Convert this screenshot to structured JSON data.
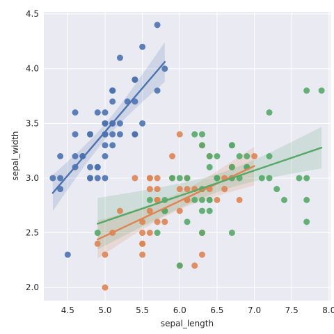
{
  "chart_data": {
    "type": "scatter",
    "title": "",
    "xlabel": "sepal_length",
    "ylabel": "sepal_width",
    "xlim": [
      4.18,
      8.02
    ],
    "ylim": [
      1.88,
      4.52
    ],
    "xticks": [
      "4.5",
      "5.0",
      "5.5",
      "6.0",
      "6.5",
      "7.0",
      "7.5",
      "8.0"
    ],
    "yticks": [
      "2.0",
      "2.5",
      "3.0",
      "3.5",
      "4.0",
      "4.5"
    ],
    "grid": true,
    "background": "#eaeaf2",
    "series": [
      {
        "color": "#4c72b0",
        "points": [
          [
            5.1,
            3.5
          ],
          [
            4.9,
            3.0
          ],
          [
            4.7,
            3.2
          ],
          [
            4.6,
            3.1
          ],
          [
            5.0,
            3.6
          ],
          [
            5.4,
            3.9
          ],
          [
            4.6,
            3.4
          ],
          [
            5.0,
            3.4
          ],
          [
            4.4,
            2.9
          ],
          [
            4.9,
            3.1
          ],
          [
            5.4,
            3.7
          ],
          [
            4.8,
            3.4
          ],
          [
            4.8,
            3.0
          ],
          [
            4.3,
            3.0
          ],
          [
            5.8,
            4.0
          ],
          [
            5.7,
            4.4
          ],
          [
            5.4,
            3.9
          ],
          [
            5.1,
            3.5
          ],
          [
            5.7,
            3.8
          ],
          [
            5.1,
            3.8
          ],
          [
            5.4,
            3.4
          ],
          [
            5.1,
            3.7
          ],
          [
            4.6,
            3.6
          ],
          [
            5.1,
            3.3
          ],
          [
            4.8,
            3.4
          ],
          [
            5.0,
            3.0
          ],
          [
            5.0,
            3.4
          ],
          [
            5.2,
            3.5
          ],
          [
            5.2,
            3.4
          ],
          [
            4.7,
            3.2
          ],
          [
            4.8,
            3.1
          ],
          [
            5.4,
            3.4
          ],
          [
            5.2,
            4.1
          ],
          [
            5.5,
            4.2
          ],
          [
            4.9,
            3.1
          ],
          [
            5.0,
            3.2
          ],
          [
            5.5,
            3.5
          ],
          [
            4.9,
            3.6
          ],
          [
            4.4,
            3.0
          ],
          [
            5.1,
            3.4
          ],
          [
            5.0,
            3.5
          ],
          [
            4.5,
            2.3
          ],
          [
            4.4,
            3.2
          ],
          [
            5.0,
            3.5
          ],
          [
            5.1,
            3.8
          ],
          [
            4.8,
            3.0
          ],
          [
            5.1,
            3.8
          ],
          [
            4.6,
            3.2
          ],
          [
            5.3,
            3.7
          ],
          [
            5.0,
            3.3
          ]
        ],
        "fit": {
          "intercept": -0.5694,
          "slope": 0.7985,
          "x_range": [
            4.3,
            5.8
          ]
        }
      },
      {
        "color": "#dd8452",
        "points": [
          [
            7.0,
            3.2
          ],
          [
            6.4,
            3.2
          ],
          [
            6.9,
            3.1
          ],
          [
            5.5,
            2.3
          ],
          [
            6.5,
            2.8
          ],
          [
            5.7,
            2.8
          ],
          [
            6.3,
            3.3
          ],
          [
            4.9,
            2.4
          ],
          [
            6.6,
            2.9
          ],
          [
            5.2,
            2.7
          ],
          [
            5.0,
            2.0
          ],
          [
            5.9,
            3.0
          ],
          [
            6.0,
            2.2
          ],
          [
            6.1,
            2.9
          ],
          [
            5.6,
            2.9
          ],
          [
            6.7,
            3.1
          ],
          [
            5.6,
            3.0
          ],
          [
            5.8,
            2.7
          ],
          [
            6.2,
            2.2
          ],
          [
            5.6,
            2.5
          ],
          [
            5.9,
            3.2
          ],
          [
            6.1,
            2.8
          ],
          [
            6.3,
            2.5
          ],
          [
            6.1,
            2.8
          ],
          [
            6.4,
            2.9
          ],
          [
            6.6,
            3.0
          ],
          [
            6.8,
            2.8
          ],
          [
            6.7,
            3.0
          ],
          [
            6.0,
            2.9
          ],
          [
            5.7,
            2.6
          ],
          [
            5.5,
            2.4
          ],
          [
            5.5,
            2.4
          ],
          [
            5.8,
            2.7
          ],
          [
            6.0,
            2.7
          ],
          [
            5.4,
            3.0
          ],
          [
            6.0,
            3.4
          ],
          [
            6.7,
            3.1
          ],
          [
            6.3,
            2.3
          ],
          [
            5.6,
            3.0
          ],
          [
            5.5,
            2.5
          ],
          [
            5.5,
            2.6
          ],
          [
            6.1,
            3.0
          ],
          [
            5.8,
            2.6
          ],
          [
            5.0,
            2.3
          ],
          [
            5.6,
            2.7
          ],
          [
            5.7,
            3.0
          ],
          [
            5.7,
            2.9
          ],
          [
            6.2,
            2.9
          ],
          [
            5.1,
            2.5
          ],
          [
            5.7,
            2.8
          ]
        ],
        "fit": {
          "intercept": 0.8723,
          "slope": 0.3197,
          "x_range": [
            4.9,
            7.0
          ]
        }
      },
      {
        "color": "#55a868",
        "points": [
          [
            6.3,
            3.3
          ],
          [
            5.8,
            2.7
          ],
          [
            7.1,
            3.0
          ],
          [
            6.3,
            2.9
          ],
          [
            6.5,
            3.0
          ],
          [
            7.6,
            3.0
          ],
          [
            4.9,
            2.5
          ],
          [
            7.3,
            2.9
          ],
          [
            6.7,
            2.5
          ],
          [
            7.2,
            3.6
          ],
          [
            6.5,
            3.2
          ],
          [
            6.4,
            2.7
          ],
          [
            6.8,
            3.0
          ],
          [
            5.7,
            2.5
          ],
          [
            5.8,
            2.8
          ],
          [
            6.4,
            3.2
          ],
          [
            6.5,
            3.0
          ],
          [
            7.7,
            3.8
          ],
          [
            7.7,
            2.6
          ],
          [
            6.0,
            2.2
          ],
          [
            6.9,
            3.2
          ],
          [
            5.6,
            2.8
          ],
          [
            7.7,
            2.8
          ],
          [
            6.3,
            2.7
          ],
          [
            6.7,
            3.3
          ],
          [
            7.2,
            3.2
          ],
          [
            6.2,
            2.8
          ],
          [
            6.1,
            3.0
          ],
          [
            6.4,
            2.8
          ],
          [
            7.2,
            3.0
          ],
          [
            7.4,
            2.8
          ],
          [
            7.9,
            3.8
          ],
          [
            6.4,
            2.8
          ],
          [
            6.3,
            2.8
          ],
          [
            6.1,
            2.6
          ],
          [
            7.7,
            3.0
          ],
          [
            6.3,
            3.4
          ],
          [
            6.4,
            3.1
          ],
          [
            6.0,
            3.0
          ],
          [
            6.9,
            3.1
          ],
          [
            6.7,
            3.1
          ],
          [
            6.9,
            3.1
          ],
          [
            5.8,
            2.7
          ],
          [
            6.8,
            3.2
          ],
          [
            6.7,
            3.3
          ],
          [
            6.7,
            3.0
          ],
          [
            6.3,
            2.5
          ],
          [
            6.5,
            3.0
          ],
          [
            6.2,
            3.4
          ],
          [
            5.9,
            3.0
          ]
        ],
        "fit": {
          "intercept": 1.4463,
          "slope": 0.2319,
          "x_range": [
            4.9,
            7.9
          ]
        }
      }
    ]
  }
}
